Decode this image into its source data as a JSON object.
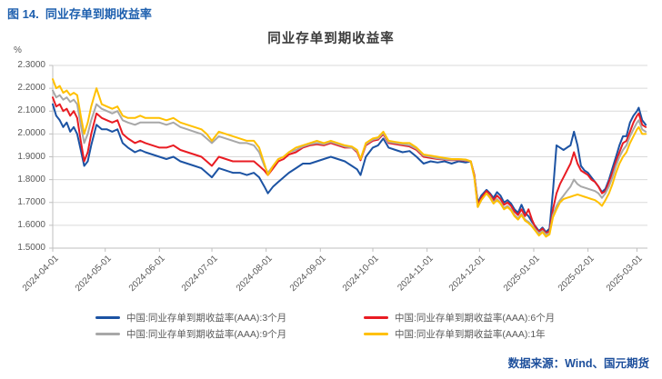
{
  "figure_caption": "图 14.  同业存单到期收益率",
  "source_note": "数据来源：Wind、国元期货",
  "colors": {
    "caption_blue": "#1d5fae",
    "source_blue": "#1d4f9c",
    "gridline": "#d9d9d9",
    "axis": "#bfbfbf",
    "tick_label": "#595959",
    "title_text": "#3b3b3b"
  },
  "chart_data": {
    "type": "line",
    "title": "同业存单到期收益率",
    "y_unit_label": "%",
    "ylim": [
      1.5,
      2.3
    ],
    "y_ticks": [
      2.3,
      2.2,
      2.1,
      2.0,
      1.9,
      1.8,
      1.7,
      1.6,
      1.5
    ],
    "grid": "horizontal",
    "legend_position": "bottom",
    "x_tick_labels": [
      "2024-04-01",
      "2024-05-01",
      "2024-06-01",
      "2024-07-01",
      "2024-08-01",
      "2024-09-01",
      "2024-10-01",
      "2024-11-01",
      "2024-12-01",
      "2025-01-01",
      "2025-02-01",
      "2025-03-01"
    ],
    "x_tick_days": [
      0,
      30,
      61,
      91,
      122,
      153,
      183,
      214,
      244,
      275,
      306,
      334
    ],
    "x_max_day": 340,
    "x_days": [
      0,
      2,
      4,
      6,
      8,
      10,
      12,
      14,
      16,
      18,
      20,
      22,
      25,
      28,
      31,
      34,
      37,
      40,
      43,
      47,
      50,
      53,
      57,
      61,
      65,
      69,
      73,
      77,
      81,
      85,
      88,
      91,
      95,
      99,
      103,
      107,
      111,
      115,
      118,
      121,
      123,
      126,
      129,
      132,
      135,
      139,
      143,
      147,
      151,
      155,
      159,
      163,
      167,
      171,
      174,
      176,
      179,
      183,
      186,
      189,
      192,
      196,
      200,
      204,
      208,
      212,
      216,
      220,
      224,
      228,
      232,
      236,
      239,
      241,
      243,
      245,
      248,
      250,
      252,
      254,
      256,
      258,
      260,
      262,
      264,
      266,
      268,
      270,
      272,
      274,
      276,
      278,
      280,
      282,
      284,
      286,
      288,
      290,
      292,
      294,
      296,
      298,
      300,
      302,
      304,
      306,
      308,
      310,
      312,
      314,
      316,
      318,
      320,
      322,
      324,
      326,
      328,
      330,
      332,
      334,
      335,
      337,
      339
    ],
    "series": [
      {
        "id": "3m",
        "name": "中国:同业存单到期收益率(AAA):3个月",
        "color": "#1c53a3",
        "values": [
          2.13,
          2.08,
          2.06,
          2.03,
          2.05,
          2.01,
          2.03,
          2.0,
          1.93,
          1.86,
          1.88,
          1.95,
          2.04,
          2.02,
          2.02,
          2.01,
          2.02,
          1.96,
          1.94,
          1.92,
          1.93,
          1.92,
          1.91,
          1.9,
          1.89,
          1.9,
          1.88,
          1.87,
          1.86,
          1.85,
          1.83,
          1.81,
          1.85,
          1.84,
          1.83,
          1.83,
          1.82,
          1.83,
          1.81,
          1.77,
          1.74,
          1.77,
          1.79,
          1.81,
          1.83,
          1.85,
          1.87,
          1.87,
          1.88,
          1.89,
          1.9,
          1.89,
          1.88,
          1.86,
          1.845,
          1.82,
          1.9,
          1.94,
          1.95,
          1.98,
          1.94,
          1.93,
          1.92,
          1.925,
          1.9,
          1.87,
          1.88,
          1.875,
          1.88,
          1.87,
          1.88,
          1.875,
          1.88,
          1.82,
          1.7,
          1.73,
          1.755,
          1.74,
          1.72,
          1.745,
          1.73,
          1.7,
          1.71,
          1.695,
          1.67,
          1.655,
          1.69,
          1.655,
          1.64,
          1.615,
          1.595,
          1.575,
          1.59,
          1.57,
          1.585,
          1.75,
          1.95,
          1.94,
          1.93,
          1.94,
          1.95,
          2.01,
          1.95,
          1.86,
          1.84,
          1.83,
          1.81,
          1.79,
          1.77,
          1.745,
          1.76,
          1.8,
          1.85,
          1.9,
          1.95,
          1.99,
          1.99,
          2.05,
          2.08,
          2.1,
          2.115,
          2.06,
          2.04
        ]
      },
      {
        "id": "6m",
        "name": "中国:同业存单到期收益率(AAA):6个月",
        "color": "#e91c23",
        "values": [
          2.16,
          2.12,
          2.13,
          2.1,
          2.11,
          2.08,
          2.1,
          2.07,
          1.97,
          1.88,
          1.92,
          2.0,
          2.09,
          2.07,
          2.06,
          2.05,
          2.06,
          2.0,
          1.98,
          1.96,
          1.97,
          1.96,
          1.95,
          1.94,
          1.94,
          1.95,
          1.93,
          1.92,
          1.91,
          1.9,
          1.88,
          1.86,
          1.9,
          1.89,
          1.88,
          1.88,
          1.88,
          1.88,
          1.86,
          1.84,
          1.82,
          1.85,
          1.88,
          1.89,
          1.91,
          1.92,
          1.94,
          1.95,
          1.955,
          1.95,
          1.96,
          1.95,
          1.94,
          1.94,
          1.92,
          1.885,
          1.95,
          1.97,
          1.975,
          2.0,
          1.96,
          1.955,
          1.95,
          1.945,
          1.93,
          1.9,
          1.895,
          1.89,
          1.888,
          1.885,
          1.886,
          1.883,
          1.88,
          1.82,
          1.69,
          1.72,
          1.75,
          1.735,
          1.71,
          1.73,
          1.715,
          1.69,
          1.7,
          1.685,
          1.66,
          1.645,
          1.67,
          1.64,
          1.67,
          1.625,
          1.59,
          1.57,
          1.585,
          1.565,
          1.575,
          1.67,
          1.74,
          1.78,
          1.81,
          1.84,
          1.87,
          1.92,
          1.87,
          1.84,
          1.83,
          1.82,
          1.8,
          1.79,
          1.77,
          1.74,
          1.75,
          1.79,
          1.83,
          1.88,
          1.92,
          1.96,
          1.97,
          2.01,
          2.05,
          2.08,
          2.09,
          2.04,
          2.03
        ]
      },
      {
        "id": "9m",
        "name": "中国:同业存单到期收益率(AAA):9个月",
        "color": "#a8a8a8",
        "values": [
          2.19,
          2.16,
          2.17,
          2.15,
          2.16,
          2.14,
          2.15,
          2.13,
          2.04,
          1.96,
          2.0,
          2.06,
          2.13,
          2.11,
          2.1,
          2.09,
          2.1,
          2.06,
          2.05,
          2.04,
          2.05,
          2.05,
          2.05,
          2.05,
          2.04,
          2.05,
          2.03,
          2.02,
          2.01,
          2.0,
          1.98,
          1.96,
          1.99,
          1.98,
          1.97,
          1.96,
          1.96,
          1.95,
          1.92,
          1.86,
          1.83,
          1.86,
          1.89,
          1.9,
          1.92,
          1.93,
          1.945,
          1.955,
          1.96,
          1.955,
          1.965,
          1.955,
          1.945,
          1.94,
          1.925,
          1.89,
          1.955,
          1.975,
          1.98,
          2.005,
          1.965,
          1.96,
          1.955,
          1.95,
          1.935,
          1.905,
          1.9,
          1.893,
          1.89,
          1.887,
          1.888,
          1.885,
          1.88,
          1.81,
          1.68,
          1.71,
          1.74,
          1.725,
          1.7,
          1.715,
          1.7,
          1.675,
          1.685,
          1.67,
          1.645,
          1.63,
          1.65,
          1.625,
          1.615,
          1.6,
          1.58,
          1.565,
          1.575,
          1.56,
          1.565,
          1.645,
          1.685,
          1.71,
          1.73,
          1.75,
          1.77,
          1.8,
          1.78,
          1.77,
          1.765,
          1.76,
          1.755,
          1.75,
          1.74,
          1.72,
          1.74,
          1.77,
          1.81,
          1.86,
          1.9,
          1.93,
          1.95,
          1.99,
          2.02,
          2.05,
          2.06,
          2.02,
          2.01
        ]
      },
      {
        "id": "1y",
        "name": "中国:同业存单到期收益率(AAA):1年",
        "color": "#ffc000",
        "values": [
          2.24,
          2.2,
          2.21,
          2.18,
          2.19,
          2.17,
          2.18,
          2.17,
          2.08,
          2.0,
          2.05,
          2.12,
          2.2,
          2.13,
          2.12,
          2.11,
          2.12,
          2.08,
          2.07,
          2.07,
          2.08,
          2.07,
          2.07,
          2.07,
          2.06,
          2.07,
          2.05,
          2.04,
          2.03,
          2.02,
          2.0,
          1.97,
          2.01,
          2.0,
          1.99,
          1.98,
          1.97,
          1.97,
          1.94,
          1.87,
          1.82,
          1.86,
          1.89,
          1.9,
          1.92,
          1.94,
          1.95,
          1.96,
          1.97,
          1.96,
          1.97,
          1.96,
          1.95,
          1.945,
          1.93,
          1.89,
          1.96,
          1.98,
          1.985,
          2.01,
          1.97,
          1.965,
          1.96,
          1.96,
          1.94,
          1.91,
          1.905,
          1.9,
          1.895,
          1.89,
          1.89,
          1.888,
          1.88,
          1.81,
          1.68,
          1.71,
          1.74,
          1.72,
          1.695,
          1.71,
          1.695,
          1.67,
          1.68,
          1.665,
          1.64,
          1.625,
          1.645,
          1.62,
          1.61,
          1.595,
          1.575,
          1.555,
          1.57,
          1.55,
          1.56,
          1.635,
          1.67,
          1.7,
          1.715,
          1.72,
          1.725,
          1.73,
          1.735,
          1.73,
          1.725,
          1.72,
          1.715,
          1.71,
          1.7,
          1.685,
          1.71,
          1.74,
          1.78,
          1.83,
          1.87,
          1.9,
          1.92,
          1.96,
          1.99,
          2.02,
          2.03,
          2.0,
          2.0
        ]
      }
    ]
  }
}
